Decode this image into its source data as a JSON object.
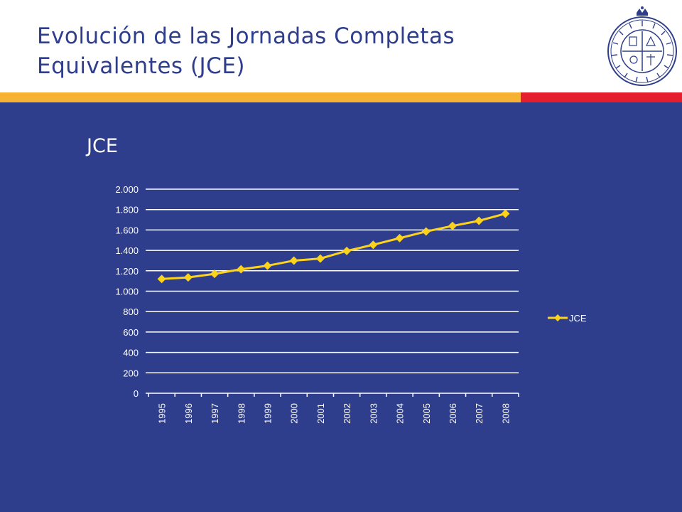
{
  "slide": {
    "title_line1": "Evolución de las Jornadas Completas",
    "title_line2": "Equivalentes (JCE)",
    "logo_icon": "university-seal-icon"
  },
  "colors": {
    "title": "#2e3e8c",
    "background": "#2e3e8c",
    "band_gold": "#f7b234",
    "band_red": "#e41e2d",
    "series": "#fbd21c"
  },
  "chart_data": {
    "type": "line",
    "title": "JCE",
    "xlabel": "",
    "ylabel": "",
    "categories": [
      "1995",
      "1996",
      "1997",
      "1998",
      "1999",
      "2000",
      "2001",
      "2002",
      "2003",
      "2004",
      "2005",
      "2006",
      "2007",
      "2008"
    ],
    "series": [
      {
        "name": "JCE",
        "values": [
          1120,
          1135,
          1170,
          1215,
          1250,
          1300,
          1320,
          1395,
          1455,
          1520,
          1585,
          1640,
          1690,
          1760
        ]
      }
    ],
    "ylim": [
      0,
      2000
    ],
    "y_ticks": [
      0,
      200,
      400,
      600,
      800,
      1000,
      1200,
      1400,
      1600,
      1800,
      2000
    ],
    "y_tick_labels": [
      "0",
      "200",
      "400",
      "600",
      "800",
      "1.000",
      "1.200",
      "1.400",
      "1.600",
      "1.800",
      "2.000"
    ],
    "grid": true,
    "legend": "right"
  }
}
